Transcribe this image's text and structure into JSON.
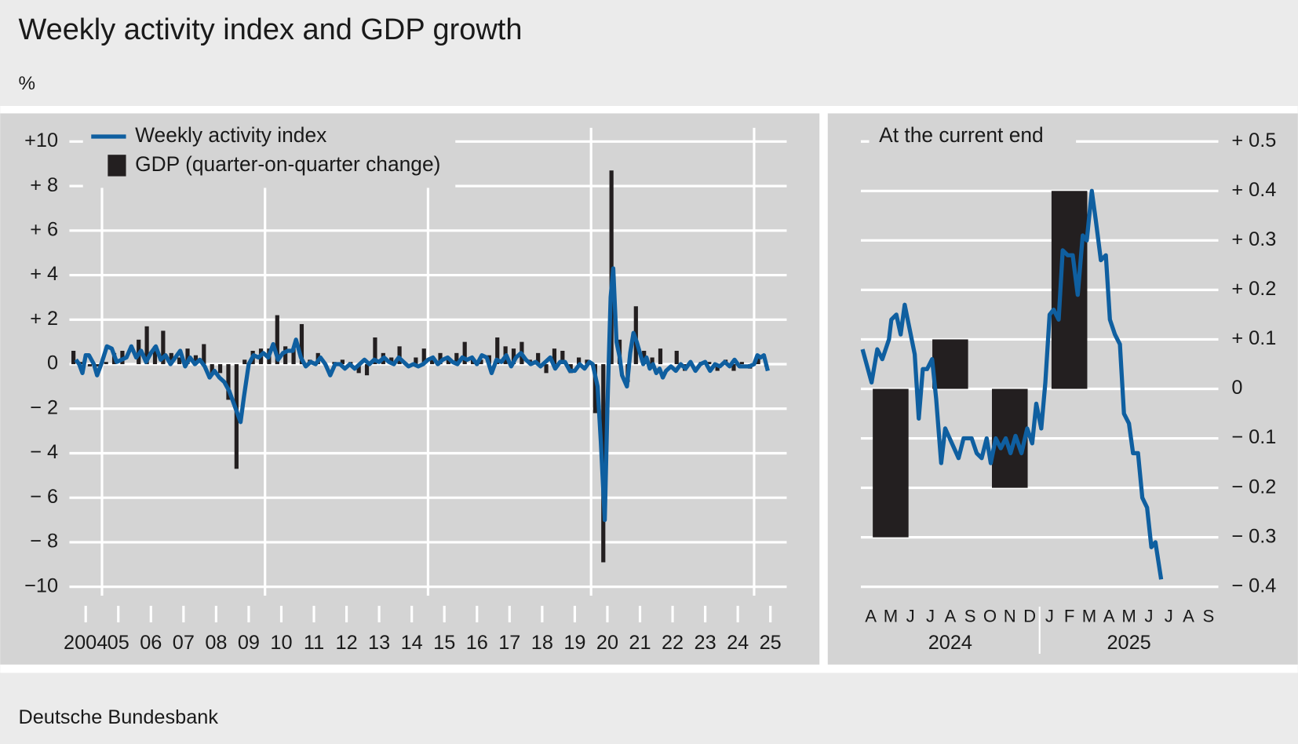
{
  "title": "Weekly activity index and GDP growth",
  "unit": "%",
  "source": "Deutsche Bundesbank",
  "chart_data": [
    {
      "type": "combo",
      "xlim": [
        2004,
        2026
      ],
      "xticks": [
        {
          "value": 2004.5,
          "label": "2004"
        },
        {
          "value": 2005.5,
          "label": "05"
        },
        {
          "value": 2006.5,
          "label": "06"
        },
        {
          "value": 2007.5,
          "label": "07"
        },
        {
          "value": 2008.5,
          "label": "08"
        },
        {
          "value": 2009.5,
          "label": "09"
        },
        {
          "value": 2010.5,
          "label": "10"
        },
        {
          "value": 2011.5,
          "label": "11"
        },
        {
          "value": 2012.5,
          "label": "12"
        },
        {
          "value": 2013.5,
          "label": "13"
        },
        {
          "value": 2014.5,
          "label": "14"
        },
        {
          "value": 2015.5,
          "label": "15"
        },
        {
          "value": 2016.5,
          "label": "16"
        },
        {
          "value": 2017.5,
          "label": "17"
        },
        {
          "value": 2018.5,
          "label": "18"
        },
        {
          "value": 2019.5,
          "label": "19"
        },
        {
          "value": 2020.5,
          "label": "20"
        },
        {
          "value": 2021.5,
          "label": "21"
        },
        {
          "value": 2022.5,
          "label": "22"
        },
        {
          "value": 2023.5,
          "label": "23"
        },
        {
          "value": 2024.5,
          "label": "24"
        },
        {
          "value": 2025.5,
          "label": "25"
        }
      ],
      "xgrid": [
        2005,
        2010,
        2015,
        2020,
        2025
      ],
      "ylim": [
        -10.4,
        10.8
      ],
      "yticks": [
        {
          "value": 10,
          "label": "+10"
        },
        {
          "value": 8,
          "label": "+ 8"
        },
        {
          "value": 6,
          "label": "+ 6"
        },
        {
          "value": 4,
          "label": "+ 4"
        },
        {
          "value": 2,
          "label": "+ 2"
        },
        0,
        {
          "value": -2,
          "label": "− 2"
        },
        {
          "value": -4,
          "label": "− 4"
        },
        {
          "value": -6,
          "label": "− 6"
        },
        {
          "value": -8,
          "label": "− 8"
        },
        {
          "value": -10,
          "label": "−10"
        }
      ],
      "grid": true,
      "legend": "top-left",
      "series": [
        {
          "name": "Weekly activity index",
          "kind": "line",
          "color": "#0f5fa0",
          "x": [
            2004.2,
            2004.3,
            2004.4,
            2004.5,
            2004.6,
            2004.75,
            2004.85,
            2005.0,
            2005.15,
            2005.3,
            2005.45,
            2005.6,
            2005.75,
            2005.9,
            2006.05,
            2006.2,
            2006.35,
            2006.5,
            2006.65,
            2006.8,
            2006.95,
            2007.1,
            2007.25,
            2007.4,
            2007.55,
            2007.7,
            2007.85,
            2008.0,
            2008.15,
            2008.3,
            2008.45,
            2008.6,
            2008.75,
            2008.9,
            2009.05,
            2009.15,
            2009.25,
            2009.35,
            2009.5,
            2009.65,
            2009.8,
            2009.95,
            2010.1,
            2010.25,
            2010.4,
            2010.55,
            2010.7,
            2010.85,
            2010.95,
            2011.1,
            2011.25,
            2011.4,
            2011.55,
            2011.7,
            2011.85,
            2012.0,
            2012.15,
            2012.3,
            2012.45,
            2012.6,
            2012.75,
            2012.9,
            2013.05,
            2013.2,
            2013.35,
            2013.5,
            2013.65,
            2013.8,
            2013.95,
            2014.1,
            2014.25,
            2014.4,
            2014.55,
            2014.7,
            2014.85,
            2015.0,
            2015.15,
            2015.3,
            2015.45,
            2015.6,
            2015.75,
            2015.9,
            2016.05,
            2016.2,
            2016.35,
            2016.5,
            2016.65,
            2016.8,
            2016.95,
            2017.1,
            2017.25,
            2017.4,
            2017.55,
            2017.7,
            2017.85,
            2018.0,
            2018.15,
            2018.3,
            2018.45,
            2018.6,
            2018.75,
            2018.9,
            2019.05,
            2019.2,
            2019.35,
            2019.5,
            2019.65,
            2019.8,
            2019.95,
            2020.05,
            2020.2,
            2020.3,
            2020.42,
            2020.5,
            2020.6,
            2020.68,
            2020.78,
            2020.88,
            2020.95,
            2021.1,
            2021.2,
            2021.3,
            2021.4,
            2021.5,
            2021.6,
            2021.7,
            2021.8,
            2021.9,
            2022.0,
            2022.1,
            2022.2,
            2022.3,
            2022.45,
            2022.6,
            2022.75,
            2022.9,
            2023.05,
            2023.2,
            2023.35,
            2023.5,
            2023.65,
            2023.8,
            2023.95,
            2024.1,
            2024.25,
            2024.4,
            2024.55,
            2024.7,
            2024.85,
            2025.0,
            2025.1,
            2025.2,
            2025.3,
            2025.42
          ],
          "values": [
            0.2,
            0.0,
            -0.4,
            0.4,
            0.4,
            0.0,
            -0.5,
            0.1,
            0.8,
            0.7,
            0.1,
            0.2,
            0.3,
            0.8,
            0.3,
            0.6,
            0.1,
            0.5,
            0.8,
            0.2,
            0.4,
            0.0,
            0.3,
            0.6,
            -0.1,
            0.3,
            0.0,
            0.2,
            -0.1,
            -0.6,
            -0.3,
            -0.6,
            -0.8,
            -1.2,
            -1.8,
            -2.2,
            -2.6,
            -1.5,
            0.0,
            0.4,
            0.3,
            0.5,
            0.3,
            0.9,
            0.2,
            0.5,
            0.6,
            0.6,
            1.1,
            0.3,
            -0.1,
            0.1,
            0.0,
            0.3,
            0.0,
            -0.5,
            0.0,
            0.0,
            -0.2,
            0.0,
            -0.2,
            0.0,
            0.2,
            0.0,
            0.2,
            0.1,
            0.3,
            0.1,
            0.0,
            0.3,
            0.1,
            -0.1,
            0.0,
            -0.1,
            0.0,
            0.2,
            0.3,
            0.0,
            0.2,
            0.3,
            0.1,
            0.0,
            0.3,
            0.2,
            0.3,
            0.0,
            0.4,
            0.3,
            -0.4,
            0.2,
            0.1,
            0.4,
            -0.1,
            0.3,
            0.5,
            0.2,
            0.0,
            0.1,
            -0.1,
            0.1,
            0.3,
            -0.2,
            0.1,
            0.1,
            -0.3,
            -0.3,
            0.0,
            -0.2,
            0.1,
            0.0,
            -1.0,
            -3.5,
            -7.0,
            -2.0,
            3.0,
            4.3,
            1.0,
            0.3,
            -0.5,
            -1.0,
            0.5,
            1.4,
            1.0,
            0.5,
            0.0,
            0.3,
            -0.2,
            0.0,
            -0.4,
            -0.2,
            -0.6,
            -0.3,
            -0.1,
            -0.3,
            0.0,
            -0.2,
            0.1,
            -0.3,
            0.0,
            0.1,
            -0.3,
            0.0,
            -0.1,
            0.1,
            -0.1,
            0.2,
            -0.1,
            -0.1,
            -0.1,
            0.0,
            0.4,
            0.3,
            0.4,
            -0.3
          ]
        },
        {
          "name": "GDP (quarter-on-quarter change)",
          "kind": "bar",
          "color": "#231f20",
          "x": [
            2004.125,
            2004.375,
            2004.625,
            2004.875,
            2005.125,
            2005.375,
            2005.625,
            2005.875,
            2006.125,
            2006.375,
            2006.625,
            2006.875,
            2007.125,
            2007.375,
            2007.625,
            2007.875,
            2008.125,
            2008.375,
            2008.625,
            2008.875,
            2009.125,
            2009.375,
            2009.625,
            2009.875,
            2010.125,
            2010.375,
            2010.625,
            2010.875,
            2011.125,
            2011.375,
            2011.625,
            2011.875,
            2012.125,
            2012.375,
            2012.625,
            2012.875,
            2013.125,
            2013.375,
            2013.625,
            2013.875,
            2014.125,
            2014.375,
            2014.625,
            2014.875,
            2015.125,
            2015.375,
            2015.625,
            2015.875,
            2016.125,
            2016.375,
            2016.625,
            2016.875,
            2017.125,
            2017.375,
            2017.625,
            2017.875,
            2018.125,
            2018.375,
            2018.625,
            2018.875,
            2019.125,
            2019.375,
            2019.625,
            2019.875,
            2020.125,
            2020.375,
            2020.625,
            2020.875,
            2021.125,
            2021.375,
            2021.625,
            2021.875,
            2022.125,
            2022.375,
            2022.625,
            2022.875,
            2023.125,
            2023.375,
            2023.625,
            2023.875,
            2024.125,
            2024.375,
            2024.625,
            2024.875,
            2025.125,
            2025.375
          ],
          "values": [
            0.6,
            0.1,
            -0.1,
            -0.1,
            0.1,
            0.5,
            0.6,
            0.0,
            1.1,
            1.7,
            0.8,
            1.5,
            0.5,
            0.3,
            0.7,
            0.4,
            0.9,
            -0.4,
            -0.4,
            -1.6,
            -4.7,
            0.2,
            0.6,
            0.7,
            0.7,
            2.2,
            0.8,
            0.7,
            1.8,
            0.2,
            0.5,
            0.0,
            0.1,
            0.2,
            0.1,
            -0.4,
            -0.5,
            1.2,
            0.5,
            0.3,
            0.8,
            0.0,
            0.3,
            0.7,
            0.2,
            0.5,
            0.3,
            0.5,
            1.0,
            0.2,
            0.2,
            0.4,
            1.2,
            0.8,
            0.7,
            1.0,
            0.2,
            0.5,
            -0.4,
            0.7,
            0.6,
            -0.4,
            0.3,
            0.2,
            -2.2,
            -8.9,
            8.7,
            1.1,
            -0.8,
            2.6,
            0.6,
            0.3,
            0.7,
            0.0,
            0.6,
            -0.3,
            0.0,
            0.1,
            0.1,
            -0.3,
            0.2,
            -0.3,
            0.1,
            -0.2,
            0.4,
            -0.1
          ]
        }
      ]
    },
    {
      "type": "combo",
      "title": "At the current end",
      "xlim": [
        2024.25,
        2025.75
      ],
      "xticks": [
        {
          "value": 2024.2917,
          "label": "A"
        },
        {
          "value": 2024.375,
          "label": "M"
        },
        {
          "value": 2024.4583,
          "label": "J"
        },
        {
          "value": 2024.5417,
          "label": "J"
        },
        {
          "value": 2024.625,
          "label": "A"
        },
        {
          "value": 2024.7083,
          "label": "S"
        },
        {
          "value": 2024.7917,
          "label": "O"
        },
        {
          "value": 2024.875,
          "label": "N"
        },
        {
          "value": 2024.9583,
          "label": "D"
        },
        {
          "value": 2025.0417,
          "label": "J"
        },
        {
          "value": 2025.125,
          "label": "F"
        },
        {
          "value": 2025.2083,
          "label": "M"
        },
        {
          "value": 2025.2917,
          "label": "A"
        },
        {
          "value": 2025.375,
          "label": "M"
        },
        {
          "value": 2025.4583,
          "label": "J"
        },
        {
          "value": 2025.5417,
          "label": "J"
        },
        {
          "value": 2025.625,
          "label": "A"
        },
        {
          "value": 2025.7083,
          "label": "S"
        }
      ],
      "xgroups": [
        {
          "value": 2024.625,
          "label": "2024"
        },
        {
          "value": 2025.375,
          "label": "2025"
        }
      ],
      "xbreaks": [
        2025
      ],
      "ylim": [
        -0.42,
        0.54
      ],
      "yticks": [
        {
          "value": 0.5,
          "label": "+ 0.5"
        },
        {
          "value": 0.4,
          "label": "+ 0.4"
        },
        {
          "value": 0.3,
          "label": "+ 0.3"
        },
        {
          "value": 0.2,
          "label": "+ 0.2"
        },
        {
          "value": 0.1,
          "label": "+ 0.1"
        },
        0,
        {
          "value": -0.1,
          "label": "− 0.1"
        },
        {
          "value": -0.2,
          "label": "− 0.2"
        },
        {
          "value": -0.3,
          "label": "− 0.3"
        },
        {
          "value": -0.4,
          "label": "− 0.4"
        }
      ],
      "grid": true,
      "series": [
        {
          "name": "GDP (quarter-on-quarter change)",
          "kind": "bar",
          "color": "#231f20",
          "x": [
            2024.375,
            2024.625,
            2024.875,
            2025.125
          ],
          "values": [
            -0.3,
            0.1,
            -0.2,
            0.4
          ]
        },
        {
          "name": "Weekly activity index",
          "kind": "line",
          "color": "#0f5fa0",
          "x": [
            2024.257,
            2024.295,
            2024.319,
            2024.34,
            2024.368,
            2024.378,
            2024.399,
            2024.417,
            2024.434,
            2024.455,
            2024.476,
            2024.493,
            2024.51,
            2024.528,
            2024.549,
            2024.566,
            2024.587,
            2024.604,
            2024.632,
            2024.66,
            2024.681,
            2024.715,
            2024.736,
            2024.757,
            2024.778,
            2024.795,
            2024.816,
            2024.837,
            2024.858,
            2024.878,
            2024.899,
            2024.924,
            2024.948,
            2024.969,
            2024.986,
            2025.007,
            2025.024,
            2025.042,
            2025.059,
            2025.08,
            2025.097,
            2025.118,
            2025.139,
            2025.16,
            2025.181,
            2025.198,
            2025.219,
            2025.236,
            2025.257,
            2025.278,
            2025.295,
            2025.316,
            2025.337,
            2025.354,
            2025.375,
            2025.392,
            2025.413,
            2025.431,
            2025.451,
            2025.469,
            2025.486,
            2025.51
          ],
          "values": [
            0.08,
            0.013,
            0.08,
            0.06,
            0.1,
            0.14,
            0.15,
            0.11,
            0.17,
            0.12,
            0.07,
            -0.06,
            0.04,
            0.04,
            0.06,
            -0.02,
            -0.15,
            -0.08,
            -0.11,
            -0.14,
            -0.1,
            -0.1,
            -0.13,
            -0.14,
            -0.1,
            -0.15,
            -0.1,
            -0.12,
            -0.1,
            -0.13,
            -0.095,
            -0.13,
            -0.08,
            -0.11,
            -0.03,
            -0.08,
            0.012,
            0.15,
            0.16,
            0.14,
            0.28,
            0.27,
            0.27,
            0.19,
            0.31,
            0.3,
            0.4,
            0.34,
            0.26,
            0.27,
            0.14,
            0.11,
            0.09,
            -0.05,
            -0.07,
            -0.13,
            -0.13,
            -0.22,
            -0.24,
            -0.32,
            -0.31,
            -0.385
          ]
        }
      ]
    }
  ]
}
